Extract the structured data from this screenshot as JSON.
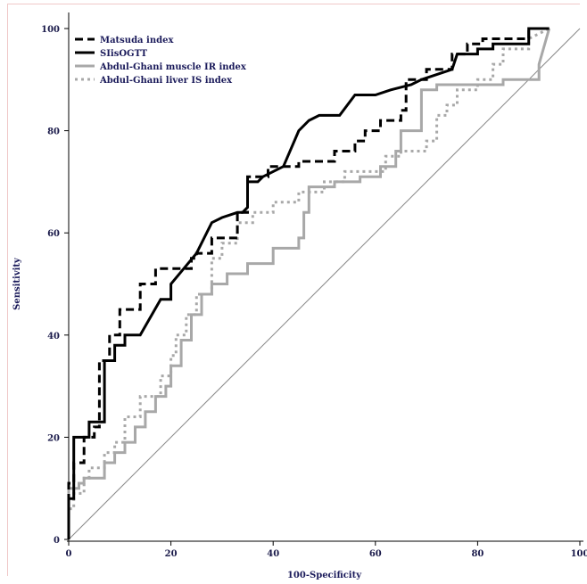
{
  "chart_data": {
    "type": "line",
    "title": "",
    "xlabel": "100-Specificity",
    "ylabel": "Sensitivity",
    "xlim": [
      0,
      100
    ],
    "ylim": [
      0,
      100
    ],
    "xticks": [
      0,
      20,
      40,
      60,
      80,
      100
    ],
    "yticks": [
      0,
      20,
      40,
      60,
      80,
      100
    ],
    "grid": false,
    "legend_position": "top-left",
    "reference_line": {
      "x": [
        0,
        100
      ],
      "y": [
        0,
        100
      ],
      "color": "#888888"
    },
    "series": [
      {
        "name": "Matsuda index",
        "style": "dashed",
        "color": "#000000",
        "x": [
          0,
          0,
          1,
          1,
          3,
          3,
          5,
          5,
          6,
          6,
          8,
          8,
          10,
          10,
          14,
          14,
          17,
          17,
          24,
          24,
          25,
          25,
          28,
          28,
          33,
          33,
          35,
          35,
          39,
          39,
          45,
          45,
          52,
          52,
          56,
          56,
          58,
          58,
          61,
          61,
          65,
          65,
          66,
          66,
          70,
          70,
          75,
          75,
          78,
          78,
          81,
          81,
          90,
          90,
          94
        ],
        "y": [
          0,
          11,
          11,
          15,
          15,
          20,
          20,
          22,
          22,
          35,
          35,
          40,
          40,
          45,
          45,
          50,
          50,
          53,
          53,
          55,
          55,
          56,
          56,
          59,
          59,
          64,
          64,
          71,
          71,
          73,
          73,
          74,
          74,
          76,
          76,
          78,
          78,
          80,
          80,
          82,
          82,
          84,
          84,
          90,
          90,
          92,
          92,
          95,
          95,
          97,
          97,
          98,
          98,
          100,
          100
        ]
      },
      {
        "name": "SIisOGTT",
        "style": "solid",
        "color": "#000000",
        "x": [
          0,
          0,
          1,
          1,
          4,
          4,
          7,
          7,
          9,
          9,
          11,
          11,
          14,
          18,
          20,
          20,
          25,
          28,
          30,
          33,
          34,
          35,
          35,
          37,
          38,
          42,
          45,
          47,
          49,
          53,
          56,
          60,
          63,
          67,
          69,
          72,
          75,
          76,
          77,
          80,
          80,
          83,
          83,
          90,
          90,
          94
        ],
        "y": [
          0,
          8,
          8,
          20,
          20,
          23,
          23,
          35,
          35,
          38,
          38,
          40,
          40,
          47,
          47,
          50,
          56,
          62,
          63,
          64,
          64,
          65,
          70,
          70,
          71,
          73,
          80,
          82,
          83,
          83,
          87,
          87,
          88,
          89,
          90,
          91,
          92,
          95,
          95,
          95,
          96,
          96,
          97,
          97,
          100,
          100
        ]
      },
      {
        "name": "Abdul-Ghani muscle IR index",
        "style": "solid",
        "color": "#a8a8a8",
        "x": [
          0,
          0,
          2,
          2,
          3,
          3,
          7,
          7,
          9,
          9,
          11,
          11,
          13,
          13,
          15,
          15,
          17,
          17,
          19,
          19,
          20,
          20,
          22,
          22,
          24,
          24,
          26,
          26,
          28,
          28,
          31,
          31,
          35,
          35,
          40,
          40,
          45,
          45,
          46,
          46,
          47,
          47,
          52,
          52,
          57,
          57,
          61,
          61,
          64,
          64,
          65,
          65,
          69,
          69,
          72,
          72,
          79,
          79,
          85,
          85,
          92,
          92,
          94
        ],
        "y": [
          0,
          10,
          10,
          11,
          11,
          12,
          12,
          15,
          15,
          17,
          17,
          19,
          19,
          22,
          22,
          25,
          25,
          28,
          28,
          30,
          30,
          34,
          34,
          39,
          39,
          44,
          44,
          48,
          48,
          50,
          50,
          52,
          52,
          54,
          54,
          57,
          57,
          59,
          59,
          64,
          64,
          69,
          69,
          70,
          70,
          71,
          71,
          73,
          73,
          76,
          76,
          80,
          80,
          88,
          88,
          89,
          89,
          89,
          89,
          90,
          90,
          93,
          100
        ]
      },
      {
        "name": "Abdul-Ghani liver IS index",
        "style": "dotted",
        "color": "#a8a8a8",
        "x": [
          0,
          0,
          1,
          1,
          3,
          3,
          4,
          4,
          7,
          7,
          9,
          9,
          11,
          11,
          14,
          14,
          18,
          18,
          20,
          20,
          21,
          21,
          23,
          23,
          25,
          25,
          28,
          28,
          30,
          30,
          33,
          33,
          36,
          36,
          40,
          40,
          45,
          45,
          50,
          50,
          54,
          54,
          62,
          62,
          65,
          65,
          70,
          70,
          72,
          72,
          74,
          74,
          76,
          76,
          80,
          80,
          83,
          83,
          85,
          85,
          90,
          90,
          94
        ],
        "y": [
          0,
          6,
          6,
          9,
          9,
          12,
          12,
          14,
          14,
          17,
          17,
          19,
          19,
          24,
          24,
          28,
          28,
          32,
          32,
          36,
          36,
          40,
          40,
          44,
          44,
          48,
          48,
          55,
          55,
          58,
          58,
          62,
          62,
          64,
          64,
          66,
          66,
          68,
          68,
          70,
          70,
          72,
          72,
          75,
          75,
          76,
          76,
          78,
          78,
          83,
          83,
          85,
          85,
          88,
          88,
          90,
          90,
          93,
          93,
          96,
          96,
          98,
          100
        ]
      }
    ]
  }
}
